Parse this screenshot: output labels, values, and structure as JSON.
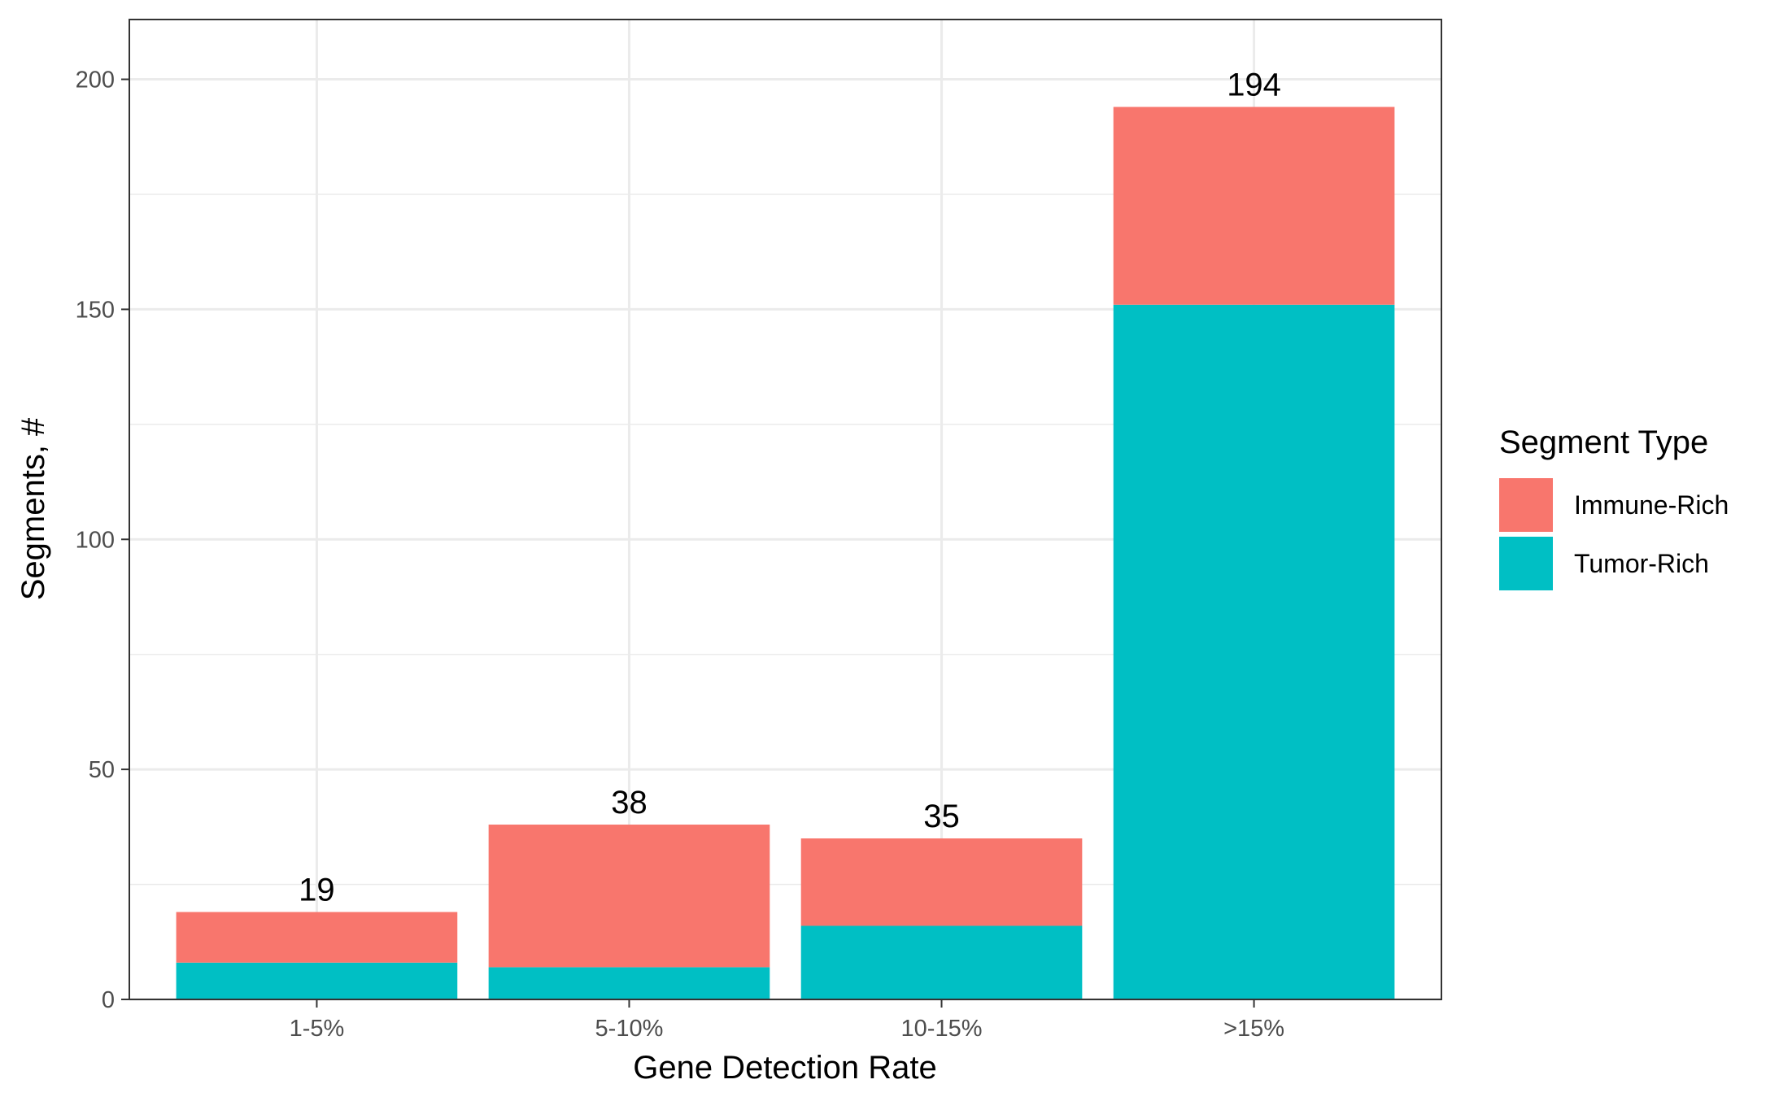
{
  "chart_data": {
    "type": "bar",
    "stacked": true,
    "categories": [
      "1-5%",
      "5-10%",
      "10-15%",
      ">15%"
    ],
    "series": [
      {
        "name": "Tumor-Rich",
        "values": [
          8,
          7,
          16,
          151
        ],
        "color": "#00BFC4"
      },
      {
        "name": "Immune-Rich",
        "values": [
          11,
          31,
          19,
          43
        ],
        "color": "#F8766D"
      }
    ],
    "totals": [
      19,
      38,
      35,
      194
    ],
    "title": "",
    "xlabel": "Gene Detection Rate",
    "ylabel": "Segments, #",
    "ylim": [
      0,
      213
    ],
    "yticks": [
      0,
      50,
      100,
      150,
      200
    ],
    "grid": true,
    "legend": {
      "title": "Segment Type",
      "position": "right",
      "entries": [
        {
          "label": "Immune-Rich",
          "color": "#F8766D"
        },
        {
          "label": "Tumor-Rich",
          "color": "#00BFC4"
        }
      ]
    }
  }
}
